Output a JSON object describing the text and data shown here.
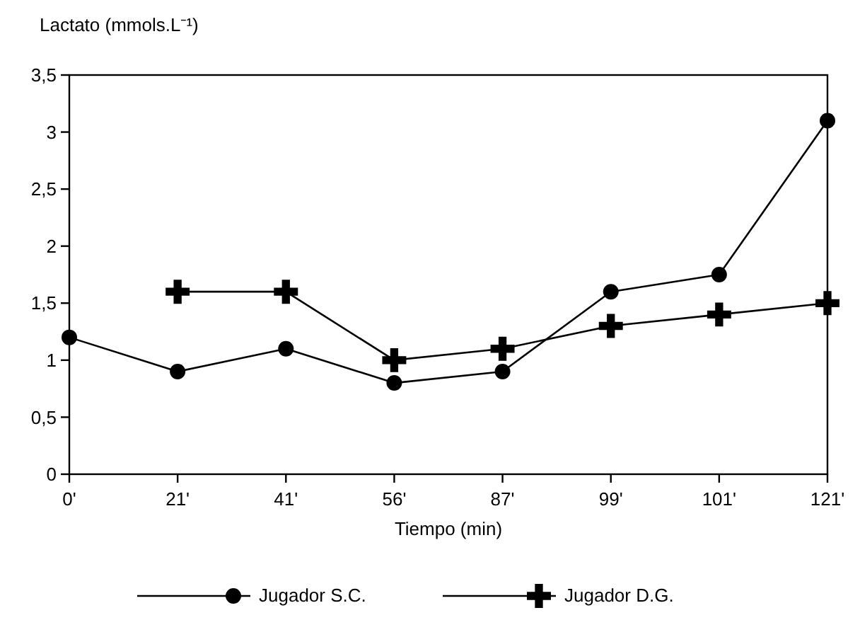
{
  "chart_data": {
    "type": "line",
    "ylabel": "Lactato (mmols.L⁻¹)",
    "xlabel": "Tiempo (min)",
    "categories": [
      "0'",
      "21'",
      "41'",
      "56'",
      "87'",
      "99'",
      "101'",
      "121'"
    ],
    "series": [
      {
        "name": "Jugador S.C.",
        "color": "#000000",
        "marker": "circle",
        "values": [
          1.2,
          0.9,
          1.1,
          0.8,
          0.9,
          1.6,
          1.75,
          3.1
        ]
      },
      {
        "name": "Jugador D.G.",
        "color": "#000000",
        "marker": "cross",
        "values": [
          null,
          1.6,
          1.6,
          1.0,
          1.1,
          1.3,
          1.4,
          1.5
        ]
      }
    ],
    "ylim": [
      0,
      3.5
    ],
    "yticks": [
      0,
      {
        "value": 0.5,
        "label": "0,5"
      },
      1,
      {
        "value": 1.5,
        "label": "1,5"
      },
      2,
      {
        "value": 2.5,
        "label": "2,5"
      },
      3,
      {
        "value": 3.5,
        "label": "3,5"
      }
    ],
    "grid": false,
    "legend": "bottom",
    "line_style": "solid"
  }
}
